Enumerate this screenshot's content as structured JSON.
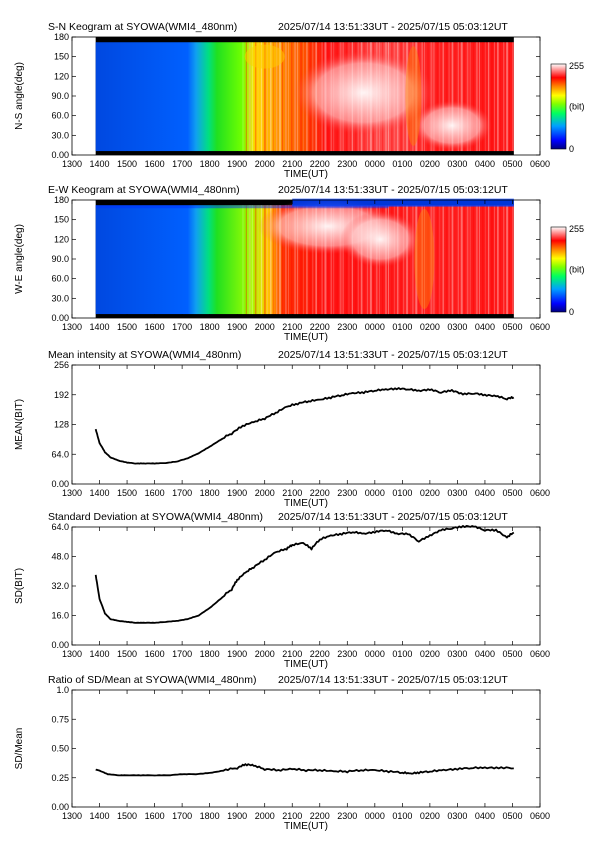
{
  "colors": {
    "colorbar_stops": [
      "#000080",
      "#0000ff",
      "#00a0ff",
      "#00ff60",
      "#80ff00",
      "#ffff00",
      "#ff8000",
      "#ff0000",
      "#ffffff"
    ]
  },
  "chart_data": [
    {
      "type": "heatmap",
      "title": "S-N Keogram at SYOWA(WMI4_480nm)",
      "time_range": "2025/07/14 13:51:33UT - 2025/07/15 05:03:12UT",
      "xlabel": "TIME(UT)",
      "ylabel": "N-S angle(deg)",
      "xticks": [
        "1300",
        "1400",
        "1500",
        "1600",
        "1700",
        "1800",
        "1900",
        "2000",
        "2100",
        "2200",
        "2300",
        "0000",
        "0100",
        "0200",
        "0300",
        "0400",
        "0500",
        "0600"
      ],
      "yticks": [
        "0.00",
        "30.0",
        "60.0",
        "90.0",
        "120",
        "150",
        "180"
      ],
      "ylim": [
        0,
        180
      ],
      "colorbar": {
        "max": "255",
        "unit": "(bit)",
        "min": "0"
      }
    },
    {
      "type": "heatmap",
      "title": "E-W Keogram at SYOWA(WMI4_480nm)",
      "time_range": "2025/07/14 13:51:33UT - 2025/07/15 05:03:12UT",
      "xlabel": "TIME(UT)",
      "ylabel": "W-E angle(deg)",
      "xticks": [
        "1300",
        "1400",
        "1500",
        "1600",
        "1700",
        "1800",
        "1900",
        "2000",
        "2100",
        "2200",
        "2300",
        "0000",
        "0100",
        "0200",
        "0300",
        "0400",
        "0500",
        "0600"
      ],
      "yticks": [
        "0.00",
        "30.0",
        "60.0",
        "90.0",
        "120",
        "150",
        "180"
      ],
      "ylim": [
        0,
        180
      ],
      "colorbar": {
        "max": "255",
        "unit": "(bit)",
        "min": "0"
      }
    },
    {
      "type": "line",
      "title": "Mean intensity at SYOWA(WMI4_480nm)",
      "time_range": "2025/07/14 13:51:33UT - 2025/07/15 05:03:12UT",
      "xlabel": "TIME(UT)",
      "ylabel": "MEAN(BIT)",
      "xticks": [
        "1300",
        "1400",
        "1500",
        "1600",
        "1700",
        "1800",
        "1900",
        "2000",
        "2100",
        "2200",
        "2300",
        "0000",
        "0100",
        "0200",
        "0300",
        "0400",
        "0500",
        "0600"
      ],
      "yticks": [
        "0.00",
        "64.0",
        "128",
        "192",
        "256"
      ],
      "xlim": [
        13,
        30
      ],
      "ylim": [
        0,
        256
      ],
      "x": [
        13.86,
        14.0,
        14.2,
        14.4,
        14.7,
        15.0,
        15.3,
        15.6,
        16.0,
        16.4,
        16.8,
        17.2,
        17.6,
        18.0,
        18.4,
        18.8,
        19.2,
        19.6,
        20.0,
        20.4,
        20.8,
        21.2,
        21.6,
        22.0,
        22.4,
        22.8,
        23.2,
        23.6,
        24.0,
        24.4,
        24.8,
        25.2,
        25.6,
        26.0,
        26.4,
        26.8,
        27.2,
        27.6,
        28.0,
        28.4,
        28.8,
        29.05
      ],
      "y": [
        118,
        88,
        68,
        57,
        50,
        46,
        44,
        44,
        44,
        45,
        48,
        55,
        66,
        80,
        95,
        108,
        124,
        132,
        140,
        152,
        165,
        172,
        177,
        180,
        185,
        190,
        194,
        196,
        200,
        202,
        204,
        203,
        199,
        202,
        196,
        200,
        192,
        194,
        190,
        188,
        182,
        186
      ]
    },
    {
      "type": "line",
      "title": "Standard Deviation at SYOWA(WMI4_480nm)",
      "time_range": "2025/07/14 13:51:33UT - 2025/07/15 05:03:12UT",
      "xlabel": "TIME(UT)",
      "ylabel": "SD(BIT)",
      "xticks": [
        "1300",
        "1400",
        "1500",
        "1600",
        "1700",
        "1800",
        "1900",
        "2000",
        "2100",
        "2200",
        "2300",
        "0000",
        "0100",
        "0200",
        "0300",
        "0400",
        "0500",
        "0600"
      ],
      "yticks": [
        "0.00",
        "16.0",
        "32.0",
        "48.0",
        "64.0"
      ],
      "xlim": [
        13,
        30
      ],
      "ylim": [
        0,
        64
      ],
      "x": [
        13.86,
        14.0,
        14.2,
        14.4,
        14.7,
        15.0,
        15.3,
        15.6,
        16.0,
        16.4,
        16.8,
        17.2,
        17.6,
        18.0,
        18.4,
        18.8,
        19.0,
        19.3,
        19.6,
        20.0,
        20.4,
        20.8,
        21.0,
        21.4,
        21.7,
        22.0,
        22.4,
        22.8,
        23.2,
        23.6,
        24.0,
        24.4,
        24.8,
        25.2,
        25.6,
        26.0,
        26.4,
        26.8,
        27.2,
        27.6,
        28.0,
        28.4,
        28.8,
        29.05
      ],
      "y": [
        38,
        25,
        17,
        14,
        13,
        12.5,
        12,
        12,
        12,
        12.5,
        13,
        14,
        16,
        20,
        25,
        30,
        35,
        39,
        42,
        46,
        50,
        52,
        54,
        55,
        52,
        57,
        59,
        60,
        61,
        60,
        61,
        62,
        60,
        60,
        56,
        59,
        62,
        63,
        64,
        64,
        62,
        62,
        58,
        61
      ]
    },
    {
      "type": "line",
      "title": "Ratio of SD/Mean at SYOWA(WMI4_480nm)",
      "time_range": "2025/07/14 13:51:33UT - 2025/07/15 05:03:12UT",
      "xlabel": "TIME(UT)",
      "ylabel": "SD/Mean",
      "xticks": [
        "1300",
        "1400",
        "1500",
        "1600",
        "1700",
        "1800",
        "1900",
        "2000",
        "2100",
        "2200",
        "2300",
        "0000",
        "0100",
        "0200",
        "0300",
        "0400",
        "0500",
        "0600"
      ],
      "yticks": [
        "0.00",
        "0.25",
        "0.50",
        "0.75",
        "1.0"
      ],
      "xlim": [
        13,
        30
      ],
      "ylim": [
        0,
        1.0
      ],
      "x": [
        13.86,
        14.0,
        14.3,
        14.7,
        15.0,
        15.5,
        16.0,
        16.5,
        17.0,
        17.5,
        18.0,
        18.5,
        19.0,
        19.3,
        19.6,
        20.0,
        20.5,
        21.0,
        21.5,
        22.0,
        22.5,
        23.0,
        23.5,
        24.0,
        24.5,
        25.0,
        25.3,
        25.6,
        26.0,
        26.5,
        27.0,
        27.5,
        28.0,
        28.5,
        29.05
      ],
      "y": [
        0.32,
        0.31,
        0.28,
        0.27,
        0.27,
        0.27,
        0.27,
        0.27,
        0.28,
        0.28,
        0.29,
        0.31,
        0.33,
        0.36,
        0.35,
        0.32,
        0.31,
        0.32,
        0.31,
        0.31,
        0.3,
        0.3,
        0.31,
        0.31,
        0.3,
        0.29,
        0.28,
        0.29,
        0.3,
        0.31,
        0.32,
        0.33,
        0.33,
        0.33,
        0.33
      ]
    }
  ]
}
